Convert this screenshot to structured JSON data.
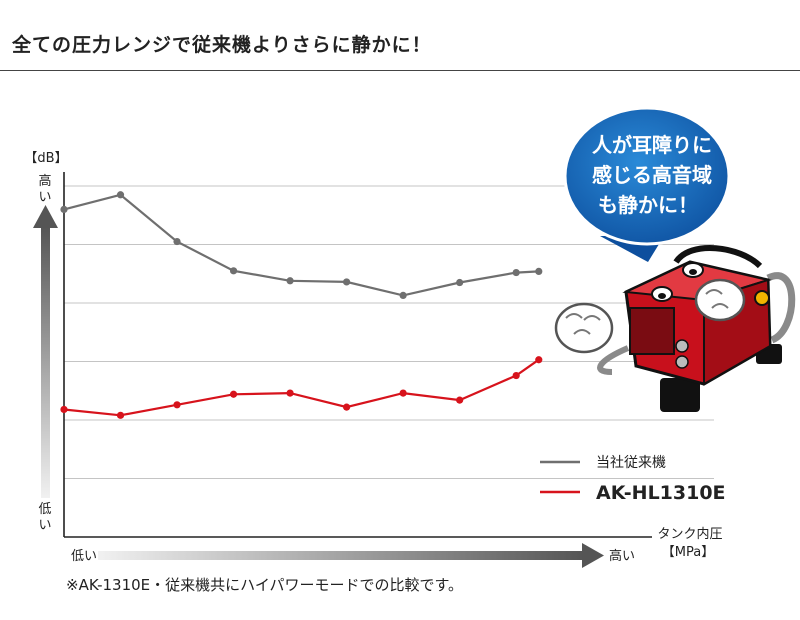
{
  "headline": "全ての圧力レンジで従来機よりさらに静かに！",
  "footnote": "※AK-1310E・従来機共にハイパワーモードでの比較です。",
  "speech_bubble": [
    "人が耳障りに",
    "感じる高音域",
    "も静かに！"
  ],
  "chart_data": {
    "type": "line",
    "title": "",
    "ylabel_unit": "【dB】",
    "y_high_label": "高い",
    "y_low_label": "低い",
    "xlabel": "タンク内圧",
    "xlabel_unit": "【MPa】",
    "x_low_label": "低い",
    "x_high_label": "高い",
    "x": [
      0,
      1,
      2,
      3,
      4,
      5,
      6,
      7,
      8,
      8.4
    ],
    "xlim": [
      0,
      11.5
    ],
    "ylim": [
      0,
      6
    ],
    "grid": true,
    "legend_position": "bottom-right",
    "series": [
      {
        "name": "当社従来機",
        "color": "#6f6f6f",
        "values": [
          5.6,
          5.85,
          5.05,
          4.55,
          4.38,
          4.36,
          4.13,
          4.35,
          4.52,
          4.54
        ]
      },
      {
        "name": "AK-HL1310E",
        "color": "#d7131c",
        "values": [
          2.18,
          2.08,
          2.26,
          2.44,
          2.46,
          2.22,
          2.46,
          2.34,
          2.76,
          3.03
        ]
      }
    ]
  }
}
